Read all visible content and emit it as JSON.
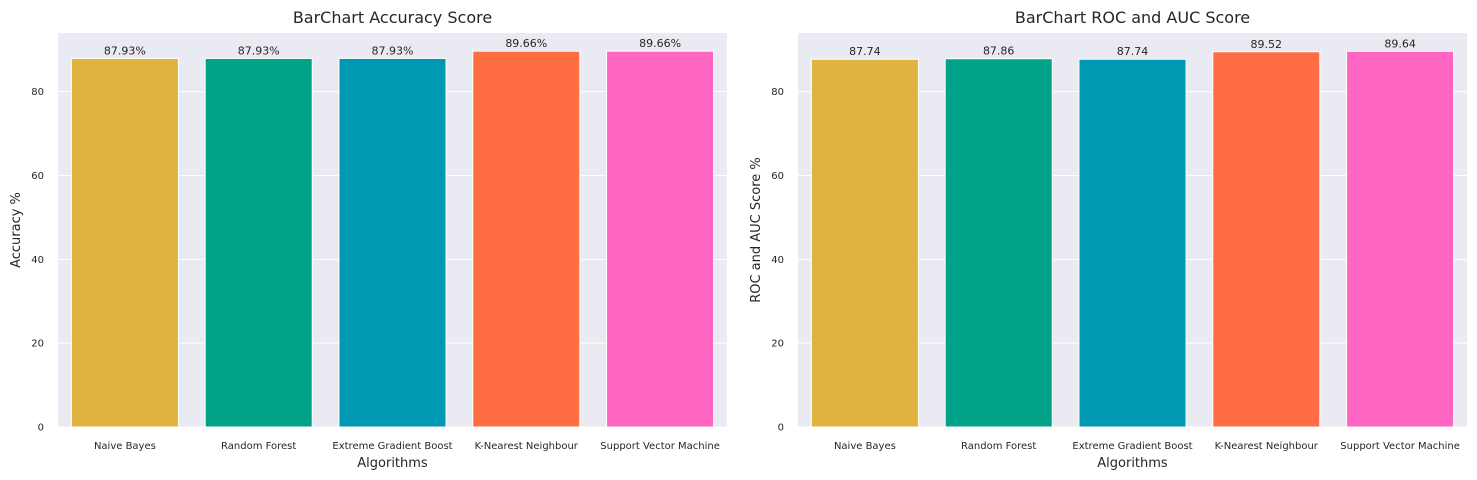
{
  "chart_data": [
    {
      "type": "bar",
      "title": "BarChart Accuracy Score",
      "xlabel": "Algorithms",
      "ylabel": "Accuracy %",
      "ylim": [
        0,
        94
      ],
      "yticks": [
        0,
        20,
        40,
        60,
        80
      ],
      "grid": true,
      "categories": [
        "Naive Bayes",
        "Random Forest",
        "Extreme Gradient Boost",
        "K-Nearest Neighbour",
        "Support Vector Machine"
      ],
      "values": [
        87.93,
        87.93,
        87.93,
        89.66,
        89.66
      ],
      "value_labels": [
        "87.93%",
        "87.93%",
        "87.93%",
        "89.66%",
        "89.66%"
      ],
      "colors": [
        "#e0b33f",
        "#00a388",
        "#0099b3",
        "#ff6d45",
        "#ff66c4"
      ]
    },
    {
      "type": "bar",
      "title": "BarChart ROC and AUC Score",
      "xlabel": "Algorithms",
      "ylabel": "ROC and AUC Score %",
      "ylim": [
        0,
        94
      ],
      "yticks": [
        0,
        20,
        40,
        60,
        80
      ],
      "grid": true,
      "categories": [
        "Naive Bayes",
        "Random Forest",
        "Extreme Gradient Boost",
        "K-Nearest Neighbour",
        "Support Vector Machine"
      ],
      "values": [
        87.74,
        87.86,
        87.74,
        89.52,
        89.64
      ],
      "value_labels": [
        "87.74",
        "87.86",
        "87.74",
        "89.52",
        "89.64"
      ],
      "colors": [
        "#e0b33f",
        "#00a388",
        "#0099b3",
        "#ff6d45",
        "#ff66c4"
      ]
    }
  ]
}
